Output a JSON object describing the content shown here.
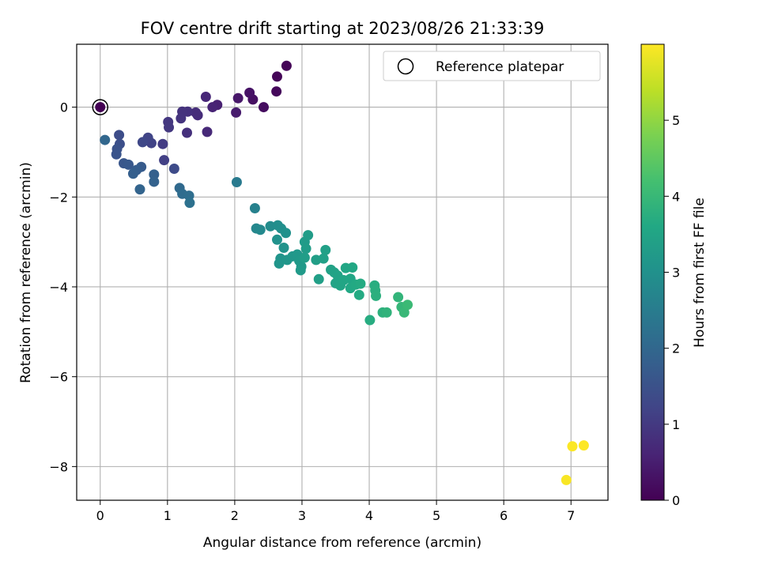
{
  "chart_data": {
    "type": "scatter",
    "title": "FOV centre drift starting at 2023/08/26 21:33:39",
    "xlabel": "Angular distance from reference (arcmin)",
    "ylabel": "Rotation from reference (arcmin)",
    "xlim": [
      -0.35,
      7.55
    ],
    "ylim": [
      -8.75,
      1.4
    ],
    "x_ticks": [
      0,
      1,
      2,
      3,
      4,
      5,
      6,
      7
    ],
    "x_tick_labels": [
      "0",
      "1",
      "2",
      "3",
      "4",
      "5",
      "6",
      "7"
    ],
    "y_ticks": [
      0,
      -2,
      -4,
      -6,
      -8
    ],
    "y_tick_labels": [
      "0",
      "−2",
      "−4",
      "−6",
      "−8"
    ],
    "grid": true,
    "legend": {
      "position": "top-right",
      "entries": [
        "Reference platepar"
      ]
    },
    "reference_point": {
      "x": 0,
      "y": 0,
      "label": "Reference platepar"
    },
    "colorbar": {
      "label": "Hours from first FF file",
      "colormap": "viridis",
      "range": [
        0,
        6
      ],
      "ticks": [
        0,
        1,
        2,
        3,
        4,
        5
      ],
      "tick_labels": [
        "0",
        "1",
        "2",
        "3",
        "4",
        "5"
      ]
    },
    "series": [
      {
        "points": [
          [
            0.0,
            0.0,
            0.0
          ],
          [
            2.77,
            0.92,
            0.05
          ],
          [
            2.63,
            0.68,
            0.08
          ],
          [
            2.62,
            0.35,
            0.12
          ],
          [
            2.43,
            0.0,
            0.2
          ],
          [
            2.27,
            0.17,
            0.25
          ],
          [
            2.22,
            0.32,
            0.3
          ],
          [
            2.05,
            0.2,
            0.38
          ],
          [
            2.02,
            -0.12,
            0.45
          ],
          [
            1.74,
            0.05,
            0.55
          ],
          [
            1.67,
            0.0,
            0.6
          ],
          [
            1.57,
            0.23,
            0.65
          ],
          [
            1.59,
            -0.55,
            0.7
          ],
          [
            1.45,
            -0.18,
            0.75
          ],
          [
            1.42,
            -0.12,
            0.78
          ],
          [
            1.29,
            -0.57,
            0.82
          ],
          [
            1.3,
            -0.1,
            0.85
          ],
          [
            1.22,
            -0.1,
            0.88
          ],
          [
            1.2,
            -0.25,
            0.9
          ],
          [
            1.01,
            -0.33,
            0.95
          ],
          [
            1.02,
            -0.45,
            0.98
          ],
          [
            0.93,
            -0.82,
            1.05
          ],
          [
            0.95,
            -1.18,
            1.12
          ],
          [
            0.76,
            -0.8,
            1.18
          ],
          [
            0.71,
            -0.68,
            1.22
          ],
          [
            0.63,
            -0.78,
            1.28
          ],
          [
            1.1,
            -1.37,
            1.35
          ],
          [
            0.28,
            -0.62,
            1.4
          ],
          [
            0.29,
            -0.82,
            1.45
          ],
          [
            0.25,
            -0.93,
            1.5
          ],
          [
            0.24,
            -1.05,
            1.55
          ],
          [
            0.35,
            -1.25,
            1.6
          ],
          [
            0.42,
            -1.28,
            1.65
          ],
          [
            0.61,
            -1.33,
            1.7
          ],
          [
            0.54,
            -1.4,
            1.75
          ],
          [
            0.49,
            -1.48,
            1.8
          ],
          [
            0.8,
            -1.5,
            1.83
          ],
          [
            0.8,
            -1.66,
            1.88
          ],
          [
            0.59,
            -1.83,
            1.92
          ],
          [
            0.07,
            -0.73,
            1.98
          ],
          [
            1.18,
            -1.8,
            2.05
          ],
          [
            1.22,
            -1.93,
            2.1
          ],
          [
            1.32,
            -1.97,
            2.15
          ],
          [
            1.33,
            -2.13,
            2.22
          ],
          [
            2.03,
            -1.67,
            2.45
          ],
          [
            2.3,
            -2.25,
            2.62
          ],
          [
            2.32,
            -2.7,
            2.75
          ],
          [
            2.38,
            -2.73,
            2.82
          ],
          [
            2.53,
            -2.65,
            2.88
          ],
          [
            2.64,
            -2.63,
            2.92
          ],
          [
            2.69,
            -2.7,
            2.96
          ],
          [
            2.76,
            -2.8,
            3.0
          ],
          [
            2.63,
            -2.95,
            3.02
          ],
          [
            2.73,
            -3.13,
            3.05
          ],
          [
            2.68,
            -3.37,
            3.08
          ],
          [
            2.66,
            -3.48,
            3.1
          ],
          [
            2.78,
            -3.4,
            3.12
          ],
          [
            2.86,
            -3.32,
            3.15
          ],
          [
            2.93,
            -3.28,
            3.17
          ],
          [
            2.96,
            -3.42,
            3.2
          ],
          [
            2.99,
            -3.55,
            3.22
          ],
          [
            2.98,
            -3.63,
            3.24
          ],
          [
            3.04,
            -3.0,
            3.26
          ],
          [
            3.06,
            -3.15,
            3.28
          ],
          [
            3.09,
            -2.85,
            3.3
          ],
          [
            3.04,
            -3.35,
            3.32
          ],
          [
            3.21,
            -3.4,
            3.34
          ],
          [
            3.25,
            -3.83,
            3.36
          ],
          [
            3.32,
            -3.37,
            3.38
          ],
          [
            3.35,
            -3.18,
            3.4
          ],
          [
            3.43,
            -3.62,
            3.42
          ],
          [
            3.48,
            -3.68,
            3.44
          ],
          [
            3.53,
            -3.75,
            3.46
          ],
          [
            3.5,
            -3.92,
            3.48
          ],
          [
            3.57,
            -3.97,
            3.5
          ],
          [
            3.62,
            -3.85,
            3.52
          ],
          [
            3.65,
            -3.58,
            3.54
          ],
          [
            3.72,
            -3.82,
            3.56
          ],
          [
            3.75,
            -3.57,
            3.58
          ],
          [
            3.72,
            -4.03,
            3.6
          ],
          [
            3.8,
            -3.95,
            3.62
          ],
          [
            3.85,
            -4.18,
            3.64
          ],
          [
            3.87,
            -3.93,
            3.66
          ],
          [
            4.01,
            -4.74,
            3.7
          ],
          [
            4.08,
            -3.97,
            3.72
          ],
          [
            4.09,
            -4.08,
            3.75
          ],
          [
            4.1,
            -4.2,
            3.78
          ],
          [
            4.2,
            -4.57,
            3.82
          ],
          [
            4.26,
            -4.57,
            3.86
          ],
          [
            4.43,
            -4.23,
            3.9
          ],
          [
            4.48,
            -4.45,
            3.95
          ],
          [
            4.52,
            -4.57,
            4.0
          ],
          [
            4.57,
            -4.4,
            4.05
          ],
          [
            6.93,
            -8.3,
            5.95
          ],
          [
            7.02,
            -7.55,
            5.98
          ],
          [
            7.19,
            -7.53,
            6.0
          ]
        ]
      }
    ]
  }
}
